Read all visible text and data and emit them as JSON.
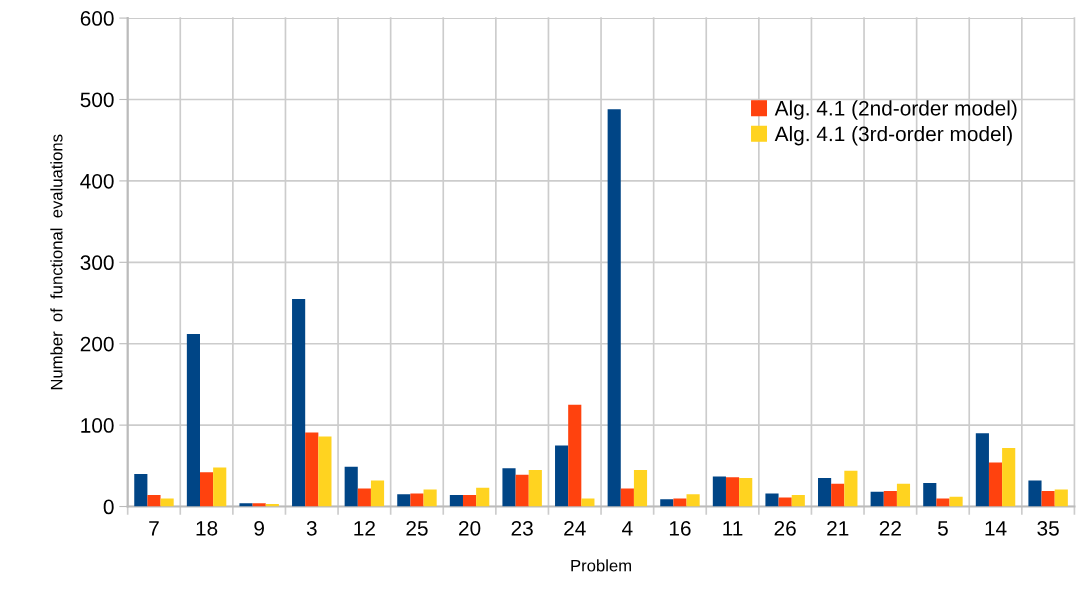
{
  "chart_data": {
    "type": "bar",
    "xlabel": "Problem",
    "ylabel": "Number  of  functional  evaluations",
    "categories": [
      "7",
      "18",
      "9",
      "3",
      "12",
      "25",
      "20",
      "23",
      "24",
      "4",
      "16",
      "11",
      "26",
      "21",
      "22",
      "5",
      "14",
      "35"
    ],
    "series": [
      {
        "color": "#004586",
        "values": [
          40,
          212,
          4,
          255,
          49,
          15,
          14,
          47,
          75,
          488,
          9,
          37,
          16,
          35,
          18,
          29,
          90,
          32
        ]
      },
      {
        "name": "Alg. 4.1 (2nd-order model)",
        "color": "#ff420e",
        "values": [
          14,
          42,
          4,
          91,
          22,
          16,
          14,
          39,
          125,
          22,
          10,
          36,
          11,
          28,
          19,
          10,
          54,
          19
        ]
      },
      {
        "name": "Alg. 4.1 (3rd-order model)",
        "color": "#ffd320",
        "values": [
          10,
          48,
          3,
          86,
          32,
          21,
          23,
          45,
          10,
          45,
          15,
          35,
          14,
          44,
          28,
          12,
          72,
          21
        ]
      }
    ],
    "ylim": [
      0,
      600
    ],
    "yticks": [
      0,
      100,
      200,
      300,
      400,
      500,
      600
    ],
    "grid": true,
    "legend": "top right"
  }
}
